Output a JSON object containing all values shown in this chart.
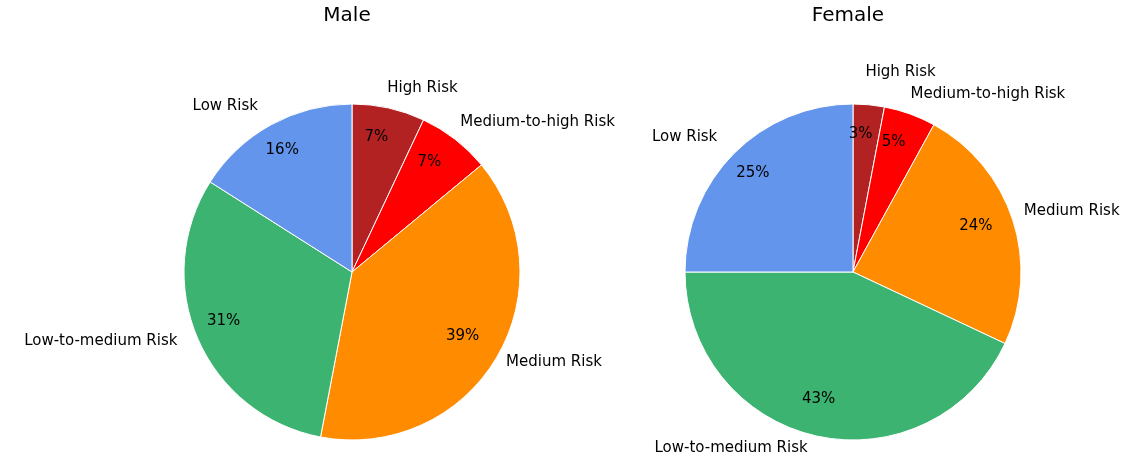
{
  "chart_data": [
    {
      "type": "pie",
      "title": "Male",
      "categories": [
        "High Risk",
        "Medium-to-high Risk",
        "Medium Risk",
        "Low-to-medium Risk",
        "Low Risk"
      ],
      "values": [
        7,
        7,
        39,
        31,
        16
      ],
      "colors": [
        "#b22222",
        "#ff0000",
        "#ff8c00",
        "#3cb371",
        "#6495ed"
      ],
      "value_labels": [
        "7%",
        "7%",
        "39%",
        "31%",
        "16%"
      ],
      "legend": false
    },
    {
      "type": "pie",
      "title": "Female",
      "categories": [
        "High Risk",
        "Medium-to-high Risk",
        "Medium Risk",
        "Low-to-medium Risk",
        "Low Risk"
      ],
      "values": [
        3,
        5,
        24,
        43,
        25
      ],
      "colors": [
        "#b22222",
        "#ff0000",
        "#ff8c00",
        "#3cb371",
        "#6495ed"
      ],
      "value_labels": [
        "3%",
        "5%",
        "24%",
        "43%",
        "25%"
      ],
      "legend": false
    }
  ]
}
